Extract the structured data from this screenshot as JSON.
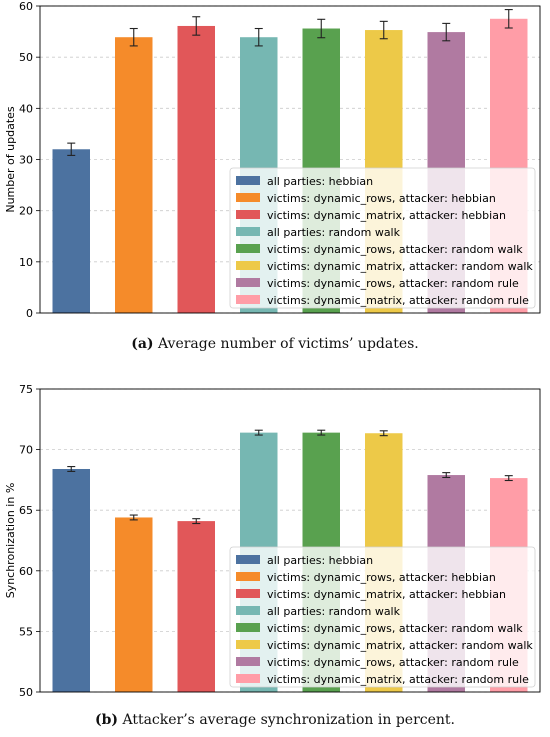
{
  "colors": [
    "#4c72a0",
    "#f58b2a",
    "#e15759",
    "#76b7b2",
    "#59a14f",
    "#edc948",
    "#b07aa1",
    "#ff9da7"
  ],
  "figure": {
    "captions": [
      {
        "tag": "(a)",
        "text": "Average number of victims’ updates."
      },
      {
        "tag": "(b)",
        "text": "Attacker’s average synchronization in percent."
      }
    ]
  },
  "chart_data": [
    {
      "type": "bar",
      "ylabel": "Number of updates",
      "ylim": [
        0,
        60
      ],
      "yticks": [
        0,
        10,
        20,
        30,
        40,
        50,
        60
      ],
      "grid": true,
      "legend_placement": "lower-right",
      "series": [
        {
          "name": "all parties: hebbian",
          "value": 32.0,
          "error": 1.2
        },
        {
          "name": "victims: dynamic_rows, attacker: hebbian",
          "value": 53.9,
          "error": 1.7
        },
        {
          "name": "victims: dynamic_matrix, attacker: hebbian",
          "value": 56.1,
          "error": 1.8
        },
        {
          "name": "all parties: random walk",
          "value": 53.9,
          "error": 1.7
        },
        {
          "name": "victims: dynamic_rows, attacker: random walk",
          "value": 55.6,
          "error": 1.8
        },
        {
          "name": "victims: dynamic_matrix, attacker: random walk",
          "value": 55.3,
          "error": 1.7
        },
        {
          "name": "victims: dynamic_rows, attacker: random rule",
          "value": 54.9,
          "error": 1.7
        },
        {
          "name": "victims: dynamic_matrix, attacker: random rule",
          "value": 57.5,
          "error": 1.8
        }
      ]
    },
    {
      "type": "bar",
      "ylabel": "Synchronization in %",
      "ylim": [
        50,
        75
      ],
      "yticks": [
        50,
        55,
        60,
        65,
        70,
        75
      ],
      "grid": true,
      "legend_placement": "lower-right",
      "series": [
        {
          "name": "all parties: hebbian",
          "value": 68.4,
          "error": 0.2
        },
        {
          "name": "victims: dynamic_rows, attacker: hebbian",
          "value": 64.4,
          "error": 0.2
        },
        {
          "name": "victims: dynamic_matrix, attacker: hebbian",
          "value": 64.1,
          "error": 0.2
        },
        {
          "name": "all parties: random walk",
          "value": 71.4,
          "error": 0.2
        },
        {
          "name": "victims: dynamic_rows, attacker: random walk",
          "value": 71.4,
          "error": 0.2
        },
        {
          "name": "victims: dynamic_matrix, attacker: random walk",
          "value": 71.35,
          "error": 0.2
        },
        {
          "name": "victims: dynamic_rows, attacker: random rule",
          "value": 67.9,
          "error": 0.2
        },
        {
          "name": "victims: dynamic_matrix, attacker: random rule",
          "value": 67.65,
          "error": 0.2
        }
      ]
    }
  ]
}
